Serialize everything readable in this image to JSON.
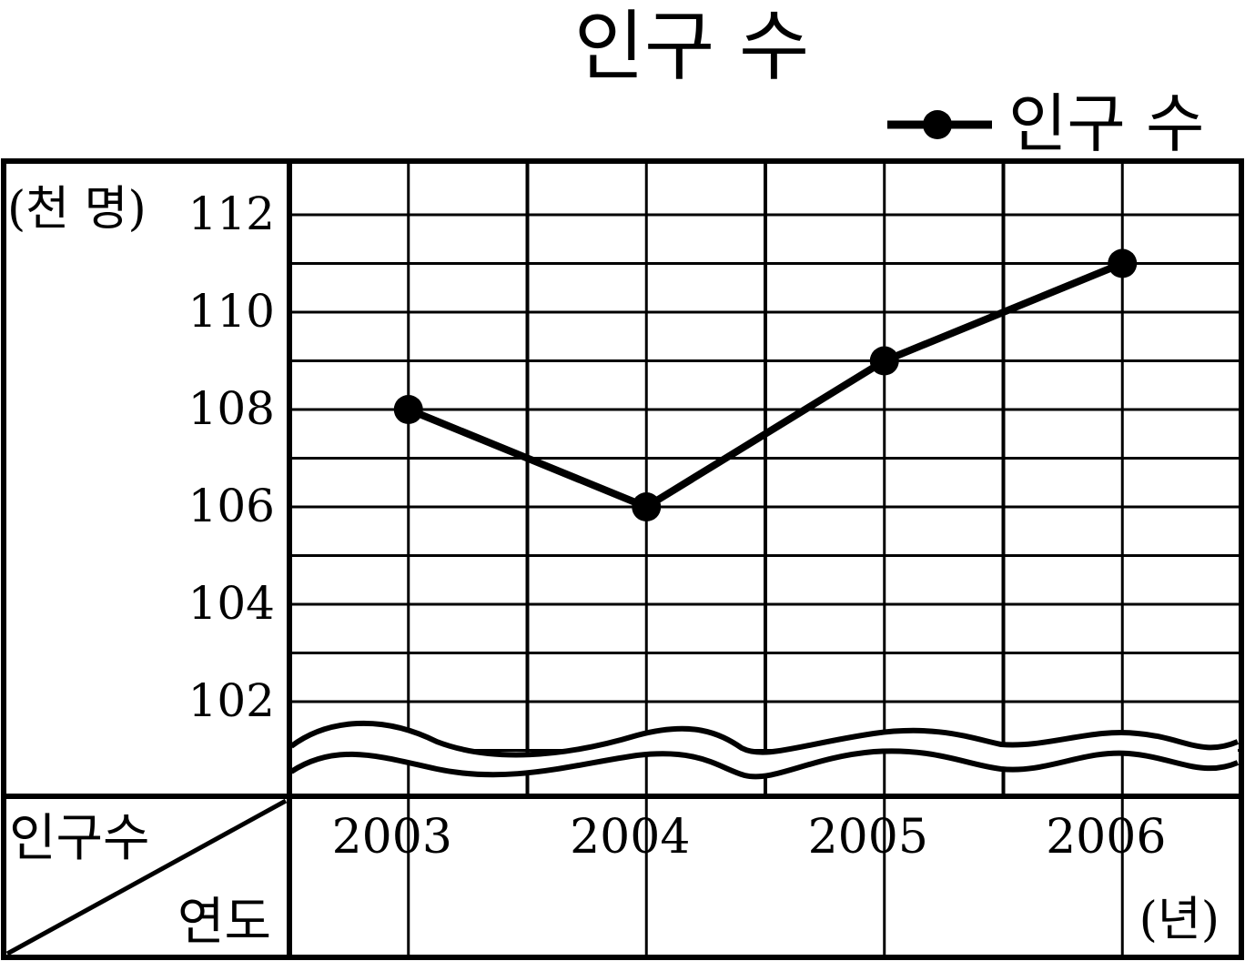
{
  "chart_data": {
    "type": "line",
    "title": "인구 수",
    "legend": {
      "label": "인구 수",
      "placement": "top-right"
    },
    "yunit": "(천 명)",
    "xunit": "(년)",
    "corner_top": "인구수",
    "corner_bottom": "연도",
    "categories": [
      "2003",
      "2004",
      "2005",
      "2006"
    ],
    "yticks": [
      "112",
      "110",
      "108",
      "106",
      "104",
      "102"
    ],
    "ylim": [
      100,
      113
    ],
    "axis_break": true,
    "grid": true,
    "series": [
      {
        "name": "인구 수",
        "values": [
          108,
          106,
          109,
          111
        ]
      }
    ],
    "colors": {
      "line": "#000000",
      "grid": "#000000",
      "background": "#ffffff"
    }
  }
}
